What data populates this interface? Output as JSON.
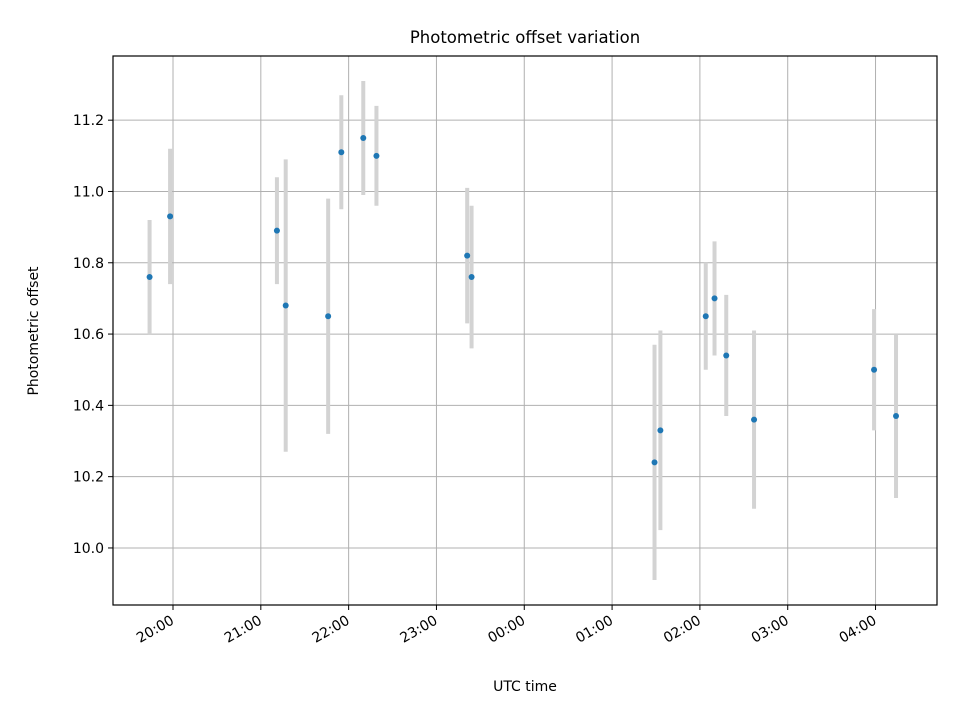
{
  "chart_data": {
    "type": "scatter",
    "title": "Photometric offset variation",
    "xlabel": "UTC time",
    "ylabel": "Photometric offset",
    "grid": true,
    "ylim": [
      9.84,
      11.38
    ],
    "xlim": [
      "2023-01-01T19:19:00",
      "2023-01-02T04:42:00"
    ],
    "x_ticks": [
      "20:00",
      "21:00",
      "22:00",
      "23:00",
      "00:00",
      "01:00",
      "02:00",
      "03:00",
      "04:00"
    ],
    "x_tick_times": [
      "2023-01-01T20:00:00",
      "2023-01-01T21:00:00",
      "2023-01-01T22:00:00",
      "2023-01-01T23:00:00",
      "2023-01-02T00:00:00",
      "2023-01-02T01:00:00",
      "2023-01-02T02:00:00",
      "2023-01-02T03:00:00",
      "2023-01-02T04:00:00"
    ],
    "y_ticks": [
      "10.0",
      "10.2",
      "10.4",
      "10.6",
      "10.8",
      "11.0",
      "11.2"
    ],
    "y_tick_values": [
      10.0,
      10.2,
      10.4,
      10.6,
      10.8,
      11.0,
      11.2
    ],
    "colors": {
      "marker": "#1f77b4",
      "errorbar": "#d3d3d3",
      "grid": "#b0b0b0"
    },
    "series": [
      {
        "points": [
          {
            "x": "2023-01-01T19:44:00",
            "y": 10.76,
            "yerr": 0.16
          },
          {
            "x": "2023-01-01T19:58:00",
            "y": 10.93,
            "yerr": 0.19
          },
          {
            "x": "2023-01-01T21:11:00",
            "y": 10.89,
            "yerr": 0.15
          },
          {
            "x": "2023-01-01T21:17:00",
            "y": 10.68,
            "yerr": 0.41
          },
          {
            "x": "2023-01-01T21:46:00",
            "y": 10.65,
            "yerr": 0.33
          },
          {
            "x": "2023-01-01T21:55:00",
            "y": 11.11,
            "yerr": 0.16
          },
          {
            "x": "2023-01-01T22:10:00",
            "y": 11.15,
            "yerr": 0.16
          },
          {
            "x": "2023-01-01T22:19:00",
            "y": 11.1,
            "yerr": 0.14
          },
          {
            "x": "2023-01-01T23:21:00",
            "y": 10.82,
            "yerr": 0.19
          },
          {
            "x": "2023-01-01T23:24:00",
            "y": 10.76,
            "yerr": 0.2
          },
          {
            "x": "2023-01-02T01:29:00",
            "y": 10.24,
            "yerr": 0.33
          },
          {
            "x": "2023-01-02T01:33:00",
            "y": 10.33,
            "yerr": 0.28
          },
          {
            "x": "2023-01-02T02:04:00",
            "y": 10.65,
            "yerr": 0.15
          },
          {
            "x": "2023-01-02T02:10:00",
            "y": 10.7,
            "yerr": 0.16
          },
          {
            "x": "2023-01-02T02:18:00",
            "y": 10.54,
            "yerr": 0.17
          },
          {
            "x": "2023-01-02T02:37:00",
            "y": 10.36,
            "yerr": 0.25
          },
          {
            "x": "2023-01-02T03:59:00",
            "y": 10.5,
            "yerr": 0.17
          },
          {
            "x": "2023-01-02T04:14:00",
            "y": 10.37,
            "yerr": 0.23
          }
        ]
      }
    ]
  }
}
